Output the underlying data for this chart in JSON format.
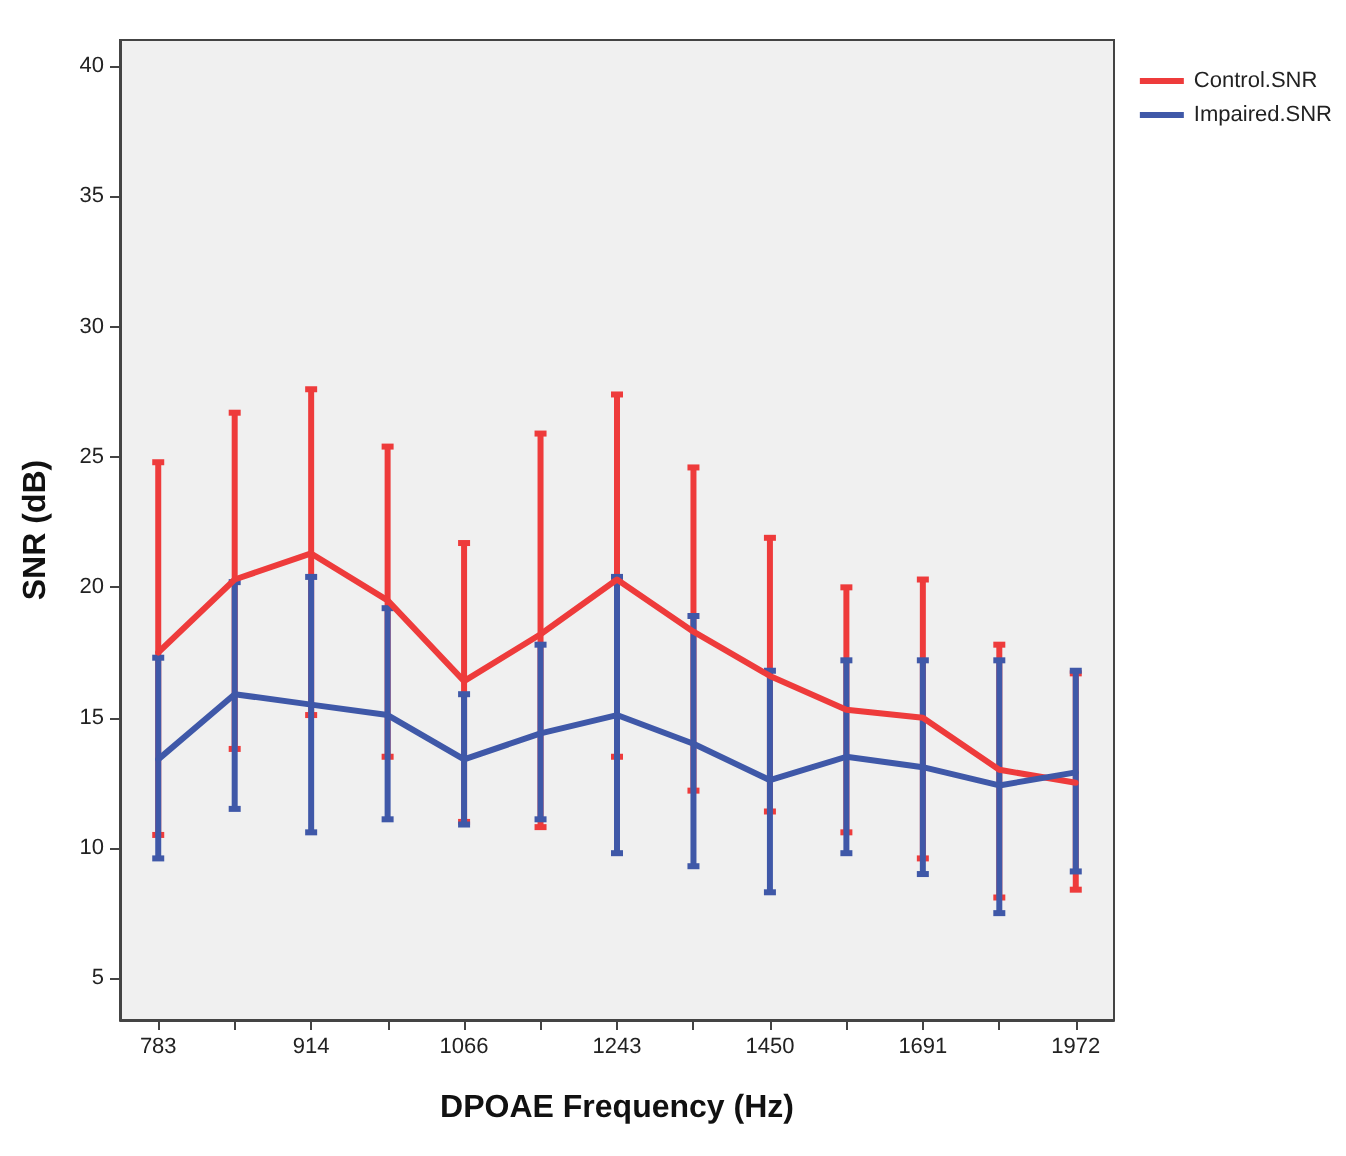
{
  "chart_data": {
    "type": "line",
    "xlabel": "DPOAE Frequency (Hz)",
    "ylabel": "SNR (dB)",
    "categories": [
      "783",
      null,
      "914",
      null,
      "1066",
      null,
      "1243",
      null,
      "1450",
      null,
      "1691",
      null,
      "1972"
    ],
    "series": [
      {
        "name": "Control.SNR",
        "color": "#ee3b3b",
        "values": [
          17.5,
          20.3,
          21.3,
          19.5,
          16.4,
          18.2,
          20.3,
          18.3,
          16.6,
          15.3,
          15.0,
          13.0,
          12.5
        ],
        "errors": [
          [
            10.5,
            24.8
          ],
          [
            13.8,
            26.7
          ],
          [
            15.1,
            27.6
          ],
          [
            13.5,
            25.4
          ],
          [
            11.0,
            21.7
          ],
          [
            10.8,
            25.9
          ],
          [
            13.5,
            27.4
          ],
          [
            12.2,
            24.6
          ],
          [
            11.4,
            21.9
          ],
          [
            10.6,
            20.0
          ],
          [
            9.6,
            20.3
          ],
          [
            8.1,
            17.8
          ],
          [
            8.4,
            16.7
          ]
        ]
      },
      {
        "name": "Impaired.SNR",
        "color": "#3f58a8",
        "values": [
          13.4,
          15.9,
          15.5,
          15.1,
          13.4,
          14.4,
          15.1,
          14.0,
          12.6,
          13.5,
          13.1,
          12.4,
          12.9
        ],
        "errors": [
          [
            9.6,
            17.3
          ],
          [
            11.5,
            20.2
          ],
          [
            10.6,
            20.4
          ],
          [
            11.1,
            19.2
          ],
          [
            10.9,
            15.9
          ],
          [
            11.1,
            17.8
          ],
          [
            9.8,
            20.4
          ],
          [
            9.3,
            18.9
          ],
          [
            8.3,
            16.8
          ],
          [
            9.8,
            17.2
          ],
          [
            9.0,
            17.2
          ],
          [
            7.5,
            17.2
          ],
          [
            9.1,
            16.8
          ]
        ]
      }
    ],
    "ylim": [
      3.4,
      41
    ],
    "yticks": [
      5,
      10,
      15,
      20,
      25,
      30,
      35,
      40
    ],
    "grid": false,
    "legend": "top right",
    "marker": "none",
    "line_style": "solid"
  }
}
